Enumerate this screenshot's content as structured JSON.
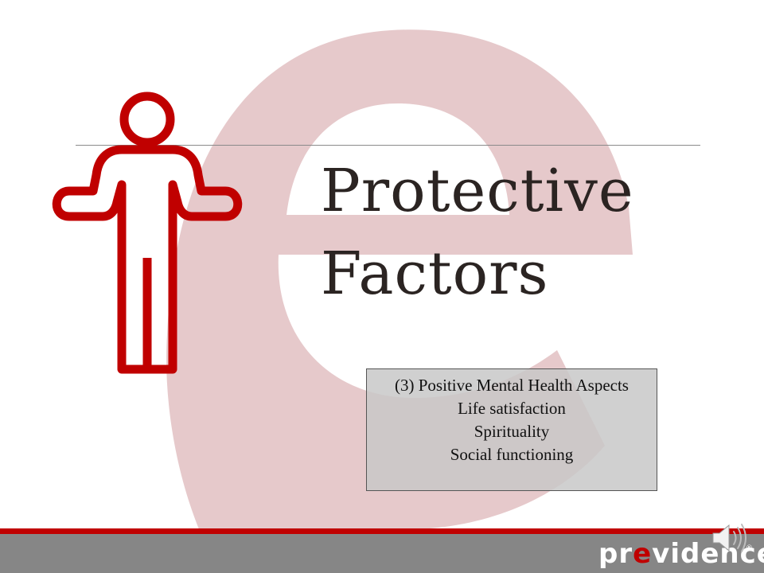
{
  "title": {
    "line1": "Protective",
    "line2": "Factors"
  },
  "aspects": {
    "heading": "(3) Positive Mental Health Aspects",
    "items": [
      "Life satisfaction",
      "Spirituality",
      "Social functioning"
    ]
  },
  "logo": {
    "part1": "pr",
    "accent": "e",
    "part2": "vidence",
    "registered_mark": "®"
  },
  "colors": {
    "accent_red": "#c00000",
    "watermark_pink": "#e6c9cb",
    "footer_gray": "#868686",
    "title_text": "#2b2422"
  },
  "icons": {
    "person": "person-arms-out-icon",
    "speaker": "speaker-icon",
    "watermark": "letter-e-watermark-icon"
  }
}
